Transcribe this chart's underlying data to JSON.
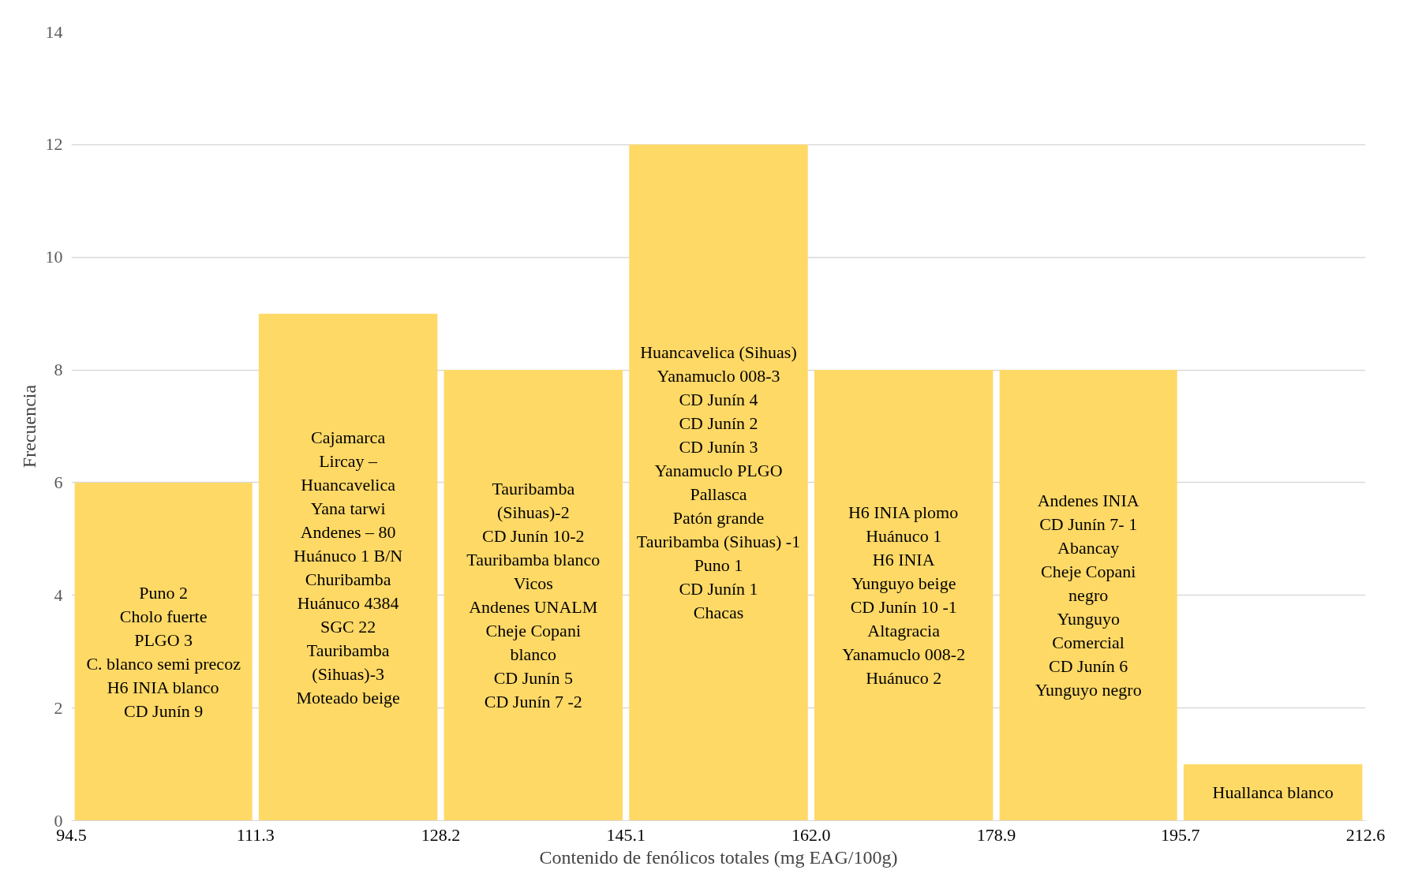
{
  "chart_data": {
    "type": "histogram",
    "xlabel": "Contenido de fenólicos totales (mg EAG/100g)",
    "ylabel": "Frecuencia",
    "bins": [
      94.5,
      111.3,
      128.2,
      145.1,
      162.0,
      178.9,
      195.7,
      212.6
    ],
    "values": [
      6,
      9,
      8,
      12,
      8,
      8,
      1
    ],
    "color": "#ffd966",
    "xlim": [
      94.5,
      212.6
    ],
    "xticks": [
      94.5,
      111.3,
      128.2,
      145.1,
      {
        "value": 162.0,
        "label": "162.0"
      },
      178.9,
      195.7,
      212.6
    ],
    "ylim": [
      0,
      14
    ],
    "yticks": [
      0,
      2,
      4,
      6,
      8,
      10,
      12,
      14
    ],
    "grid": "y",
    "annotations": [
      "Puno 2\nCholo fuerte\nPLGO 3\nC. blanco semi precoz\nH6 INIA blanco\nCD Junín 9",
      "Cajamarca\nLircay –\nHuancavelica\nYana tarwi\nAndenes – 80\nHuánuco 1 B/N\nChuribamba\nHuánuco 4384\nSGC 22\nTauribamba\n(Sihuas)-3\nMoteado beige",
      "Tauribamba\n(Sihuas)-2\nCD Junín 10-2\nTauribamba blanco\nVicos\nAndenes UNALM\nCheje Copani\nblanco\nCD Junín 5\nCD Junín 7 -2",
      "Huancavelica (Sihuas)\nYanamuclo 008-3\nCD Junín 4\nCD Junín 2\nCD Junín 3\nYanamuclo PLGO\nPallasca\nPatón grande\nTauribamba (Sihuas) -1\nPuno 1\nCD Junín 1\nChacas",
      "H6 INIA plomo\nHuánuco 1\nH6 INIA\nYunguyo beige\nCD Junín 10 -1\nAltagracia\nYanamuclo 008-2\nHuánuco 2",
      "Andenes INIA\nCD Junín 7- 1\nAbancay\nCheje Copani\nnegro\nYunguyo\nComercial\nCD Junín 6\nYunguyo negro",
      "Huallanca blanco"
    ]
  }
}
